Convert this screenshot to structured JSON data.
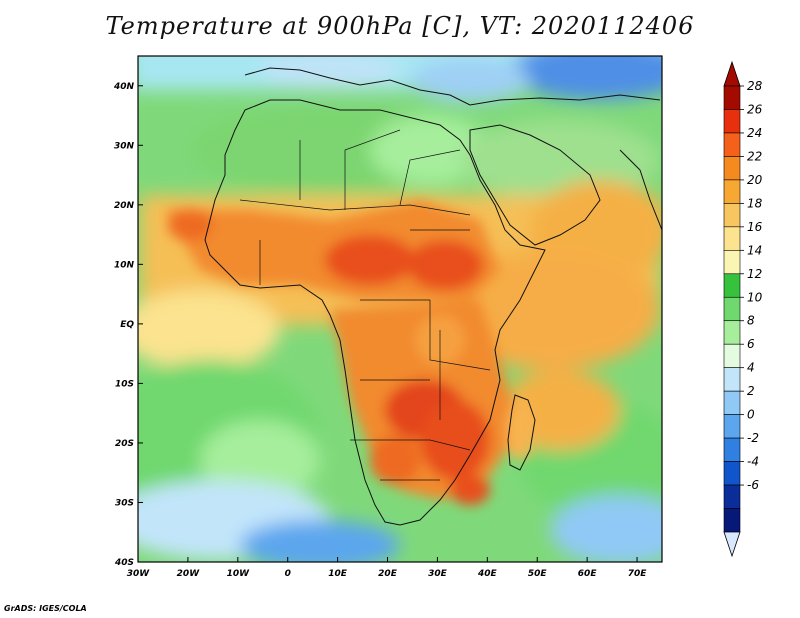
{
  "title": "Temperature at 900hPa [C], VT: 2020112406",
  "footer": "GrADS: IGES/COLA",
  "map": {
    "lon_range": [
      -30,
      75
    ],
    "lat_range": [
      -40,
      45
    ],
    "lon_ticks": [
      "30W",
      "20W",
      "10W",
      "0",
      "10E",
      "20E",
      "30E",
      "40E",
      "50E",
      "60E",
      "70E"
    ],
    "lat_ticks": [
      "40N",
      "30N",
      "20N",
      "10N",
      "EQ",
      "10S",
      "20S",
      "30S",
      "40S"
    ]
  },
  "colorbar": {
    "labels": [
      "28",
      "26",
      "24",
      "22",
      "20",
      "18",
      "16",
      "14",
      "12",
      "10",
      "8",
      "6",
      "4",
      "2",
      "0",
      "-2",
      "-4",
      "-6"
    ],
    "colors": [
      "#a50a00",
      "#e8300f",
      "#f5601a",
      "#f58a1e",
      "#f7a833",
      "#f8c660",
      "#fbe38f",
      "#fbf5b4",
      "#36c23d",
      "#6fd86e",
      "#a6ee9b",
      "#e3fce0",
      "#c2e5fa",
      "#90c9f5",
      "#5ba6ee",
      "#2f80e2",
      "#1155cc",
      "#0a2d9a",
      "#061878"
    ],
    "end_colors": {
      "top": "#a50a00",
      "bottom": "#d8e8ff"
    }
  },
  "colors": {
    "ocean_green": "#8fe084",
    "land_orange": "#f28a2e",
    "hot_core": "#e3451d",
    "cool_blue": "#4f8fe6"
  }
}
